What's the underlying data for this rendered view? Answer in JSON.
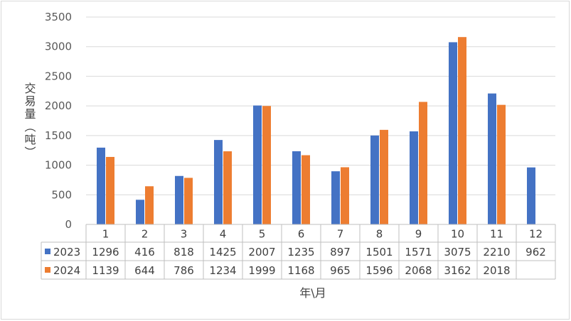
{
  "chart_data": {
    "type": "bar",
    "title": "",
    "xlabel": "年\\月",
    "ylabel": "交易量（吨）",
    "ylim": [
      0,
      3500
    ],
    "yticks": [
      0,
      500,
      1000,
      1500,
      2000,
      2500,
      3000,
      3500
    ],
    "grid": true,
    "legend": "data-table",
    "categories": [
      "1",
      "2",
      "3",
      "4",
      "5",
      "6",
      "7",
      "8",
      "9",
      "10",
      "11",
      "12"
    ],
    "series": [
      {
        "name": "2023",
        "color": "#4472c4",
        "values": [
          1296,
          416,
          818,
          1425,
          2007,
          1235,
          897,
          1501,
          1571,
          3075,
          2210,
          962
        ]
      },
      {
        "name": "2024",
        "color": "#ed7d31",
        "values": [
          1139,
          644,
          786,
          1234,
          1999,
          1168,
          965,
          1596,
          2068,
          3162,
          2018,
          null
        ]
      }
    ]
  }
}
